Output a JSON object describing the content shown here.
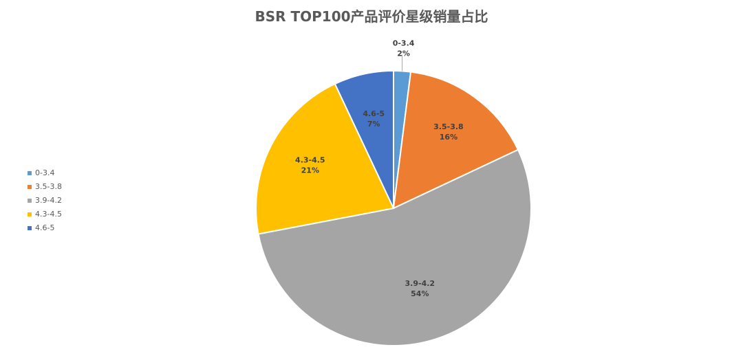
{
  "chart_data": {
    "type": "pie",
    "title": "BSR TOP100产品评价星级销量占比",
    "categories": [
      "0-3.4",
      "3.5-3.8",
      "3.9-4.2",
      "4.3-4.5",
      "4.6-5"
    ],
    "values": [
      2,
      16,
      54,
      21,
      7
    ],
    "value_labels": [
      "2%",
      "16%",
      "54%",
      "21%",
      "7%"
    ],
    "colors": [
      "#5B9BD5",
      "#ED7D31",
      "#A5A5A5",
      "#FFC000",
      "#4472C4"
    ],
    "legend_position": "left",
    "start": "top, clockwise"
  }
}
